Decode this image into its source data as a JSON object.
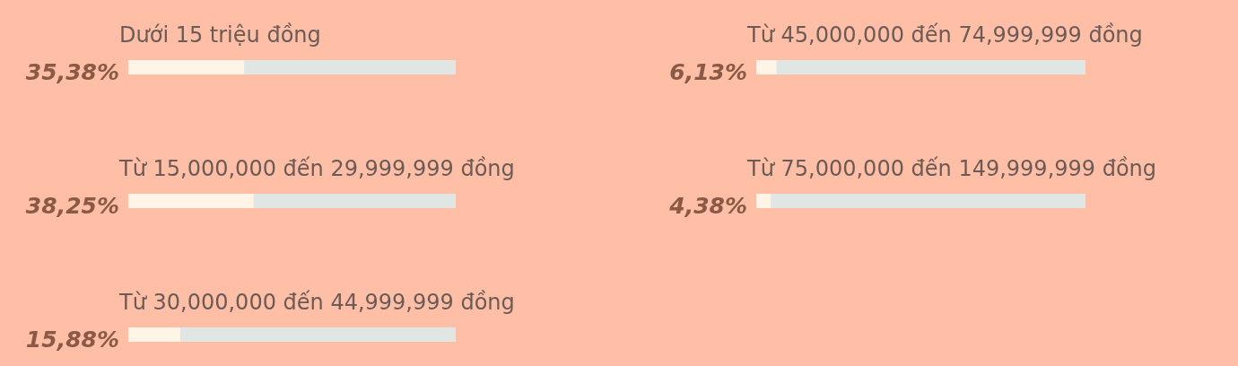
{
  "chart_data": [
    {
      "type": "bar",
      "orientation": "horizontal",
      "categories": [
        "Dưới 15 triệu đồng",
        "Từ 15,000,000 đến 29,999,999 đồng",
        "Từ 30,000,000 đến 44,999,999 đồng"
      ],
      "values": [
        35.38,
        38.25,
        15.88
      ],
      "value_labels": [
        "35,38%",
        "38,25%",
        "15,88%"
      ],
      "color": "#fff5e6",
      "xlim": [
        0,
        100
      ],
      "tick_labels": false
    },
    {
      "type": "bar",
      "orientation": "horizontal",
      "categories": [
        "Từ 45,000,000 đến 74,999,999 đồng",
        "Từ 75,000,000 đến 149,999,999 đồng"
      ],
      "values": [
        6.13,
        4.38
      ],
      "value_labels": [
        "6,13%",
        "4,38%"
      ],
      "color": "#fff5e6",
      "xlim": [
        0,
        100
      ],
      "tick_labels": false
    }
  ]
}
